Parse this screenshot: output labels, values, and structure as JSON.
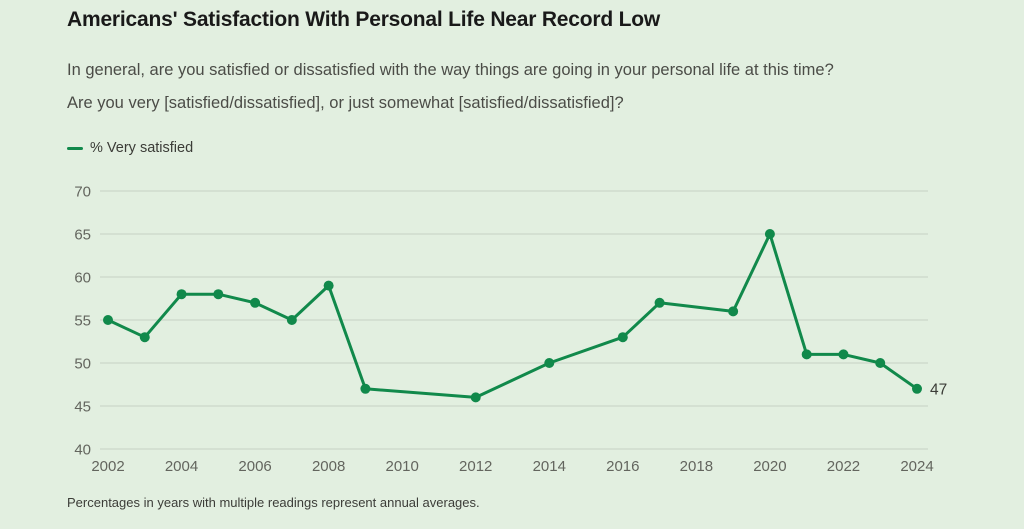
{
  "page": {
    "title": "Americans' Satisfaction With Personal Life Near Record Low",
    "subtitle_line1": "In general, are you satisfied or dissatisfied with the way things are going in your personal life at this time?",
    "subtitle_line2": "Are you very [satisfied/dissatisfied], or just somewhat [satisfied/dissatisfied]?",
    "footnote": "Percentages in years with multiple readings represent annual averages."
  },
  "legend": {
    "label": "% Very satisfied"
  },
  "colors": {
    "background": "#e2efe0",
    "line": "#11894b",
    "grid": "#ccd7c9",
    "axis_text": "#63655e",
    "annotation_text": "#3b3c37"
  },
  "chart_data": {
    "type": "line",
    "title": "% Very satisfied",
    "x": [
      2002,
      2003,
      2004,
      2005,
      2006,
      2007,
      2008,
      2009,
      2012,
      2014,
      2016,
      2017,
      2019,
      2020,
      2021,
      2022,
      2023,
      2024
    ],
    "series": [
      {
        "name": "% Very satisfied",
        "values": [
          55,
          53,
          58,
          58,
          57,
          55,
          59,
          47,
          46,
          50,
          53,
          57,
          56,
          65,
          51,
          51,
          50,
          47
        ]
      }
    ],
    "xlim": [
      2002,
      2024
    ],
    "ylim": [
      40,
      70
    ],
    "y_ticks": [
      40,
      45,
      50,
      55,
      60,
      65,
      70
    ],
    "x_ticks": [
      2002,
      2004,
      2006,
      2008,
      2010,
      2012,
      2014,
      2016,
      2018,
      2020,
      2022,
      2024
    ],
    "grid": "horizontal",
    "legend_position": "top-left",
    "last_point_label": "47"
  }
}
